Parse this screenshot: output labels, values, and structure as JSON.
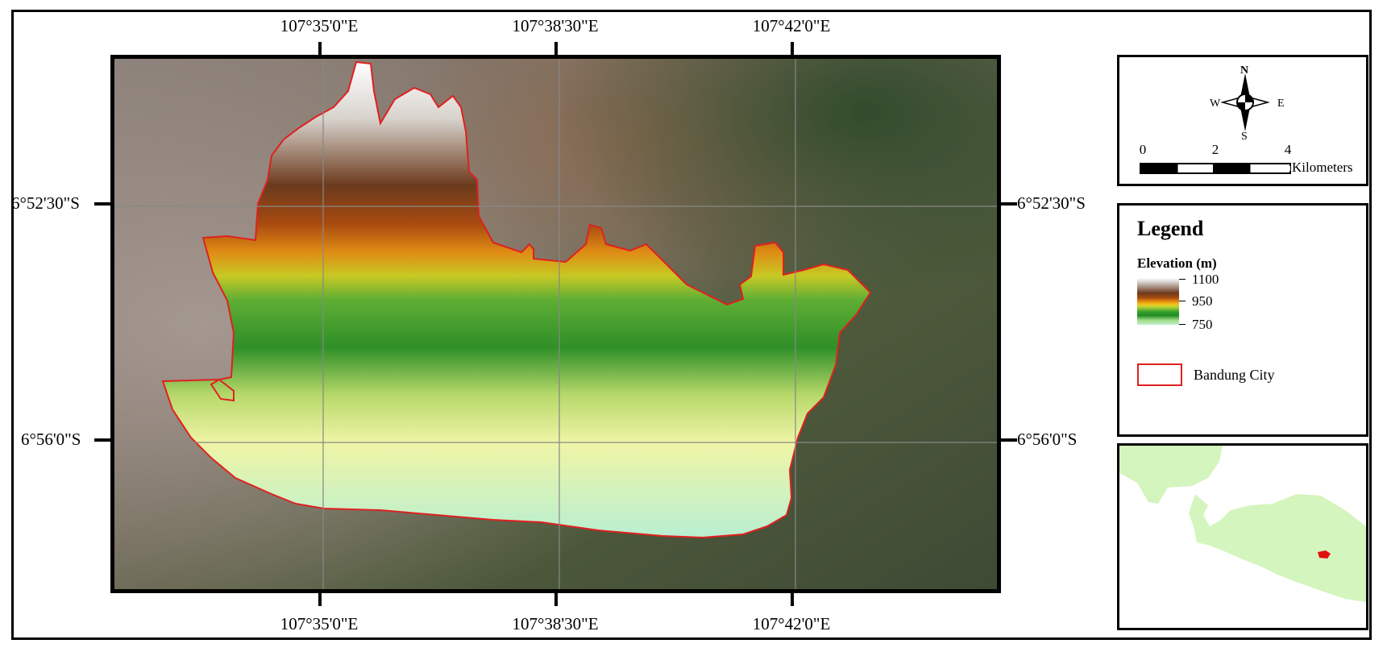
{
  "map": {
    "top_labels": [
      "107°35'0\"E",
      "107°38'30\"E",
      "107°42'0\"E"
    ],
    "bottom_labels": [
      "107°35'0\"E",
      "107°38'30\"E",
      "107°42'0\"E"
    ],
    "left_labels": [
      "6°52'30\"S",
      "6°56'0\"S"
    ],
    "right_labels": [
      "6°52'30\"S",
      "6°56'0\"S"
    ]
  },
  "compass": {
    "n": "N",
    "s": "S",
    "e": "E",
    "w": "W"
  },
  "scale_bar": {
    "ticks": [
      "0",
      "2",
      "4"
    ],
    "unit": "Kilometers"
  },
  "legend": {
    "title": "Legend",
    "elevation_title": "Elevation (m)",
    "elevation_labels": [
      "1100",
      "950",
      "750"
    ],
    "boundary_label": "Bandung City",
    "boundary_color": "#e02020"
  },
  "inset": {
    "land_color": "#d4f5bd",
    "city_color": "#e01010"
  }
}
